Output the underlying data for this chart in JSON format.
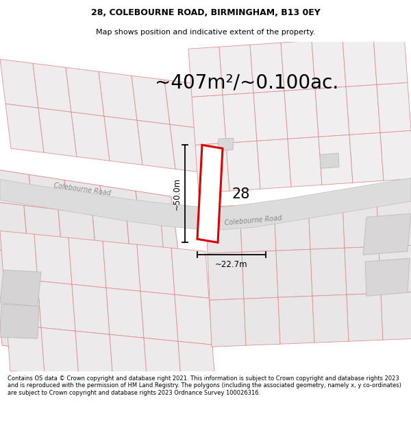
{
  "title_line1": "28, COLEBOURNE ROAD, BIRMINGHAM, B13 0EY",
  "title_line2": "Map shows position and indicative extent of the property.",
  "area_text": "~407m²/~0.100ac.",
  "label_28": "28",
  "dim_height": "~50.0m",
  "dim_width": "~22.7m",
  "road_label1": "Colebourne Road",
  "road_label2": "Colebourne Road",
  "footer_text": "Contains OS data © Crown copyright and database right 2021. This information is subject to Crown copyright and database rights 2023 and is reproduced with the permission of HM Land Registry. The polygons (including the associated geometry, namely x, y co-ordinates) are subject to Crown copyright and database rights 2023 Ordnance Survey 100026316.",
  "map_bg": "#f7f6f6",
  "road_fill": "#dddcdc",
  "road_edge": "#c8c8c8",
  "plot_fill": "#e8e6e6",
  "plot_edge_light": "#e09090",
  "plot_edge_gray": "#c0bebe",
  "red_outline": "#dd0000",
  "white_fill": "#ffffff",
  "area_fontsize": 20,
  "label_fontsize": 14
}
